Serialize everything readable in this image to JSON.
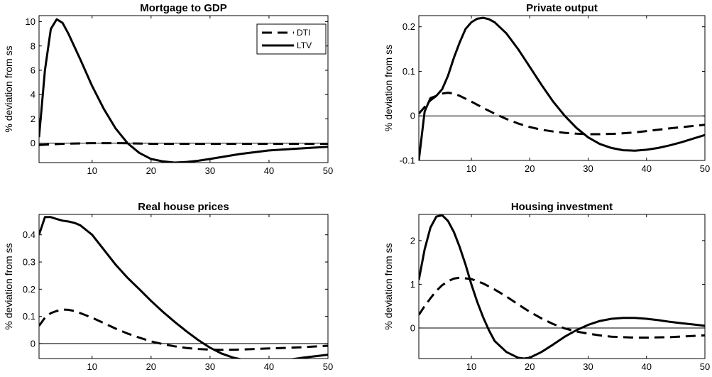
{
  "colors": {
    "line": "#000000",
    "background": "#ffffff"
  },
  "chart_data": [
    {
      "type": "line",
      "title": "Mortgage to GDP",
      "ylabel": "% deviation from ss",
      "xlabel": "",
      "xlim": [
        1,
        50
      ],
      "ylim": [
        -1.6,
        10.5
      ],
      "xticks": [
        10,
        20,
        30,
        40,
        50
      ],
      "yticks": [
        0,
        2,
        4,
        6,
        8,
        10
      ],
      "ytick_labels": [
        "0",
        "2",
        "4",
        "6",
        "8",
        "10"
      ],
      "zero_line": true,
      "legend": {
        "position": "top-right",
        "entries": [
          "DTI",
          "LTV"
        ]
      },
      "series": [
        {
          "name": "DTI",
          "style": "dashed",
          "x": [
            1,
            5,
            10,
            15,
            20,
            25,
            30,
            35,
            40,
            45,
            50
          ],
          "y": [
            -0.15,
            -0.05,
            0.0,
            0.0,
            -0.05,
            -0.05,
            -0.05,
            -0.05,
            -0.05,
            -0.05,
            -0.05
          ]
        },
        {
          "name": "LTV",
          "style": "solid",
          "x": [
            1,
            2,
            3,
            4,
            5,
            6,
            8,
            10,
            12,
            14,
            16,
            18,
            20,
            22,
            24,
            26,
            28,
            30,
            35,
            40,
            45,
            50
          ],
          "y": [
            0.5,
            6.0,
            9.4,
            10.2,
            9.9,
            9.0,
            6.9,
            4.7,
            2.8,
            1.2,
            0.0,
            -0.8,
            -1.3,
            -1.5,
            -1.6,
            -1.55,
            -1.45,
            -1.3,
            -0.9,
            -0.6,
            -0.45,
            -0.3
          ]
        }
      ]
    },
    {
      "type": "line",
      "title": "Private output",
      "ylabel": "% deviation from ss",
      "xlabel": "",
      "xlim": [
        1,
        50
      ],
      "ylim": [
        -0.1,
        0.225
      ],
      "xticks": [
        10,
        20,
        30,
        40,
        50
      ],
      "yticks": [
        -0.1,
        0,
        0.1,
        0.2
      ],
      "ytick_labels": [
        "-0.1",
        "0",
        "0.1",
        "0.2"
      ],
      "zero_line": true,
      "series": [
        {
          "name": "DTI",
          "style": "dashed",
          "x": [
            1,
            2,
            3,
            4,
            5,
            6,
            7,
            8,
            10,
            12,
            14,
            16,
            18,
            20,
            22,
            24,
            26,
            28,
            30,
            32,
            35,
            38,
            40,
            44,
            47,
            50
          ],
          "y": [
            0.005,
            0.02,
            0.035,
            0.045,
            0.05,
            0.052,
            0.05,
            0.045,
            0.032,
            0.018,
            0.005,
            -0.007,
            -0.017,
            -0.025,
            -0.031,
            -0.035,
            -0.038,
            -0.04,
            -0.041,
            -0.041,
            -0.04,
            -0.037,
            -0.034,
            -0.028,
            -0.024,
            -0.02
          ]
        },
        {
          "name": "LTV",
          "style": "solid",
          "x": [
            1,
            2,
            3,
            4,
            5,
            6,
            7,
            8,
            9,
            10,
            11,
            12,
            13,
            14,
            16,
            18,
            20,
            22,
            24,
            26,
            28,
            30,
            32,
            34,
            36,
            38,
            40,
            42,
            44,
            46,
            48,
            50
          ],
          "y": [
            -0.1,
            0.01,
            0.04,
            0.045,
            0.06,
            0.09,
            0.13,
            0.165,
            0.195,
            0.21,
            0.218,
            0.22,
            0.217,
            0.21,
            0.185,
            0.15,
            0.11,
            0.07,
            0.032,
            0.0,
            -0.027,
            -0.048,
            -0.063,
            -0.072,
            -0.077,
            -0.078,
            -0.076,
            -0.072,
            -0.066,
            -0.059,
            -0.051,
            -0.043
          ]
        }
      ]
    },
    {
      "type": "line",
      "title": "Real house prices",
      "ylabel": "% deviation from ss",
      "xlabel": "",
      "xlim": [
        1,
        50
      ],
      "ylim": [
        -0.055,
        0.475
      ],
      "xticks": [
        10,
        20,
        30,
        40,
        50
      ],
      "yticks": [
        0,
        0.1,
        0.2,
        0.3,
        0.4
      ],
      "ytick_labels": [
        "0",
        "0.1",
        "0.2",
        "0.3",
        "0.4"
      ],
      "zero_line": true,
      "series": [
        {
          "name": "DTI",
          "style": "dashed",
          "x": [
            1,
            2,
            3,
            4,
            5,
            6,
            7,
            8,
            10,
            12,
            14,
            16,
            18,
            20,
            22,
            24,
            26,
            28,
            30,
            32,
            35,
            40,
            45,
            50
          ],
          "y": [
            0.065,
            0.095,
            0.112,
            0.12,
            0.125,
            0.124,
            0.12,
            0.112,
            0.095,
            0.075,
            0.055,
            0.037,
            0.022,
            0.008,
            -0.002,
            -0.01,
            -0.016,
            -0.02,
            -0.022,
            -0.023,
            -0.022,
            -0.018,
            -0.014,
            -0.008
          ]
        },
        {
          "name": "LTV",
          "style": "solid",
          "x": [
            1,
            2,
            3,
            4,
            5,
            6,
            7,
            8,
            10,
            12,
            14,
            16,
            18,
            20,
            22,
            24,
            26,
            28,
            30,
            32,
            34,
            36,
            38,
            40,
            42,
            44,
            46,
            48,
            50
          ],
          "y": [
            0.4,
            0.465,
            0.465,
            0.458,
            0.452,
            0.449,
            0.444,
            0.435,
            0.4,
            0.345,
            0.29,
            0.242,
            0.2,
            0.157,
            0.117,
            0.08,
            0.045,
            0.013,
            -0.015,
            -0.037,
            -0.052,
            -0.061,
            -0.065,
            -0.065,
            -0.062,
            -0.057,
            -0.051,
            -0.046,
            -0.041
          ]
        }
      ]
    },
    {
      "type": "line",
      "title": "Housing investment",
      "ylabel": "% deviation from ss",
      "xlabel": "",
      "xlim": [
        1,
        50
      ],
      "ylim": [
        -0.7,
        2.6
      ],
      "xticks": [
        10,
        20,
        30,
        40,
        50
      ],
      "yticks": [
        0,
        1,
        2
      ],
      "ytick_labels": [
        "0",
        "1",
        "2"
      ],
      "zero_line": true,
      "series": [
        {
          "name": "DTI",
          "style": "dashed",
          "x": [
            1,
            2,
            3,
            4,
            5,
            6,
            7,
            8,
            10,
            12,
            14,
            16,
            18,
            20,
            22,
            24,
            26,
            28,
            30,
            32,
            34,
            36,
            38,
            40,
            44,
            47,
            50
          ],
          "y": [
            0.3,
            0.5,
            0.68,
            0.85,
            0.98,
            1.07,
            1.13,
            1.15,
            1.12,
            1.02,
            0.88,
            0.72,
            0.54,
            0.37,
            0.22,
            0.09,
            -0.01,
            -0.08,
            -0.13,
            -0.17,
            -0.2,
            -0.21,
            -0.22,
            -0.22,
            -0.21,
            -0.19,
            -0.17
          ]
        },
        {
          "name": "LTV",
          "style": "solid",
          "x": [
            1,
            2,
            3,
            4,
            5,
            6,
            7,
            8,
            9,
            10,
            11,
            12,
            13,
            14,
            16,
            18,
            19,
            20,
            22,
            24,
            26,
            28,
            30,
            32,
            34,
            36,
            38,
            40,
            42,
            44,
            46,
            48,
            50
          ],
          "y": [
            1.1,
            1.8,
            2.3,
            2.55,
            2.58,
            2.45,
            2.2,
            1.85,
            1.45,
            1.0,
            0.6,
            0.25,
            -0.05,
            -0.3,
            -0.55,
            -0.68,
            -0.7,
            -0.68,
            -0.55,
            -0.38,
            -0.2,
            -0.05,
            0.07,
            0.16,
            0.21,
            0.23,
            0.23,
            0.21,
            0.18,
            0.14,
            0.11,
            0.08,
            0.05
          ]
        }
      ]
    }
  ]
}
